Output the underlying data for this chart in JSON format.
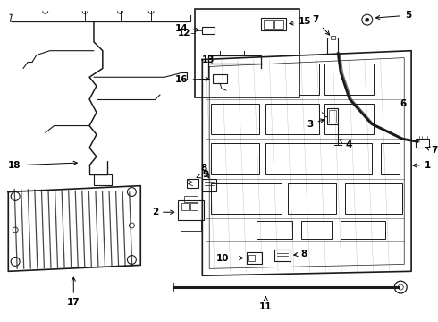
{
  "bg_color": "#ffffff",
  "line_color": "#1a1a1a",
  "fig_width": 4.9,
  "fig_height": 3.6,
  "dpi": 100,
  "fs": 7.5
}
